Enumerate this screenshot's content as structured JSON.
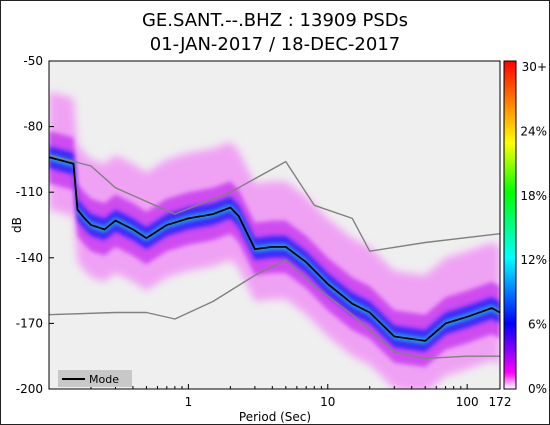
{
  "chart_data": {
    "type": "heatmap",
    "title_line1": "GE.SANT.--.BHZ : 13909 PSDs",
    "title_line2": "01-JAN-2017 / 18-DEC-2017",
    "xlabel": "Period (Sec)",
    "ylabel": "dB",
    "x_scale": "log",
    "xlim": [
      0.1,
      172
    ],
    "ylim": [
      -200,
      -50
    ],
    "x_ticks": [
      {
        "value": 1,
        "label": "1"
      },
      {
        "value": 10,
        "label": "10"
      },
      {
        "value": 100,
        "label": "100"
      },
      {
        "value": 172,
        "label": "172"
      }
    ],
    "y_ticks": [
      -50,
      -80,
      -110,
      -140,
      -170,
      -200
    ],
    "colorbar": {
      "ticks": [
        "0%",
        "6%",
        "12%",
        "18%",
        "24%",
        "30+"
      ],
      "colors": [
        "#ffffff",
        "#ff00ff",
        "#0000ff",
        "#00ffff",
        "#00ff00",
        "#ffff00",
        "#ff0000"
      ]
    },
    "legend": {
      "position": "bottom-left",
      "entries": [
        {
          "label": "Mode",
          "color": "#000000"
        }
      ]
    },
    "series": [
      {
        "name": "Mode",
        "color": "#000000",
        "points": [
          [
            0.1,
            -94
          ],
          [
            0.15,
            -97
          ],
          [
            0.16,
            -118
          ],
          [
            0.18,
            -122
          ],
          [
            0.2,
            -125
          ],
          [
            0.25,
            -127
          ],
          [
            0.3,
            -123
          ],
          [
            0.4,
            -127
          ],
          [
            0.5,
            -131
          ],
          [
            0.7,
            -125
          ],
          [
            1,
            -122
          ],
          [
            1.5,
            -120
          ],
          [
            2,
            -117
          ],
          [
            2.3,
            -121
          ],
          [
            3,
            -136
          ],
          [
            4,
            -135
          ],
          [
            5,
            -135
          ],
          [
            7,
            -142
          ],
          [
            10,
            -152
          ],
          [
            15,
            -161
          ],
          [
            20,
            -165
          ],
          [
            30,
            -176
          ],
          [
            50,
            -178
          ],
          [
            70,
            -170
          ],
          [
            100,
            -167
          ],
          [
            150,
            -163
          ],
          [
            172,
            -165
          ]
        ]
      },
      {
        "name": "",
        "color": "#808080",
        "points": [
          [
            0.1,
            -93
          ],
          [
            0.2,
            -98
          ],
          [
            0.3,
            -108
          ],
          [
            0.8,
            -120
          ],
          [
            2,
            -110
          ],
          [
            5,
            -96
          ],
          [
            8,
            -116
          ],
          [
            15,
            -122
          ],
          [
            20,
            -137
          ],
          [
            50,
            -133
          ],
          [
            172,
            -129
          ]
        ]
      },
      {
        "name": "",
        "color": "#808080",
        "points": [
          [
            0.1,
            -166
          ],
          [
            0.3,
            -165
          ],
          [
            0.5,
            -165
          ],
          [
            0.8,
            -168
          ],
          [
            1.5,
            -160
          ],
          [
            3,
            -148
          ],
          [
            5,
            -141
          ],
          [
            8,
            -153
          ],
          [
            15,
            -166
          ],
          [
            30,
            -183
          ],
          [
            50,
            -186
          ],
          [
            100,
            -185
          ],
          [
            172,
            -185
          ]
        ]
      }
    ]
  }
}
